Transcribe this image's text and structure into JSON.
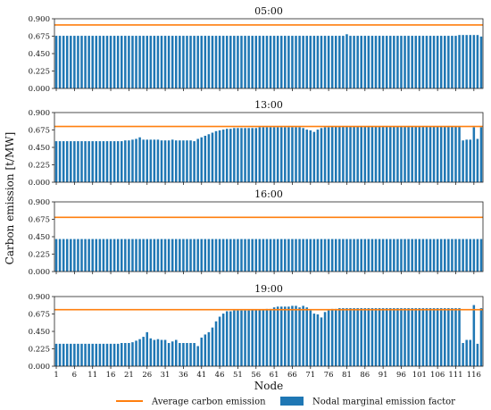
{
  "chart_data": {
    "type": "bar",
    "ylabel": "Carbon emission [t/MW]",
    "xlabel": "Node",
    "x_tick_labels": [
      "1",
      "6",
      "11",
      "16",
      "21",
      "26",
      "31",
      "36",
      "41",
      "46",
      "51",
      "56",
      "61",
      "66",
      "71",
      "76",
      "81",
      "86",
      "91",
      "96",
      "101",
      "106",
      "111",
      "116"
    ],
    "y_tick_labels": [
      "0.000",
      "0.225",
      "0.450",
      "0.675",
      "0.900"
    ],
    "ylim": [
      0,
      0.9
    ],
    "legend": {
      "placement": "bottom-center",
      "line_label": "Average carbon emission",
      "bar_label": "Nodal marginal emission factor"
    },
    "colors": {
      "bar": "#1f77b4",
      "line": "#ff7f0e"
    },
    "panels": [
      {
        "title": "05:00",
        "average": 0.82,
        "values": [
          0.68,
          0.68,
          0.68,
          0.68,
          0.68,
          0.68,
          0.68,
          0.68,
          0.68,
          0.68,
          0.68,
          0.68,
          0.68,
          0.68,
          0.68,
          0.68,
          0.68,
          0.68,
          0.68,
          0.68,
          0.68,
          0.68,
          0.68,
          0.68,
          0.68,
          0.68,
          0.68,
          0.68,
          0.68,
          0.68,
          0.68,
          0.68,
          0.68,
          0.68,
          0.68,
          0.68,
          0.68,
          0.68,
          0.68,
          0.68,
          0.68,
          0.68,
          0.68,
          0.68,
          0.68,
          0.68,
          0.68,
          0.68,
          0.68,
          0.68,
          0.68,
          0.68,
          0.68,
          0.68,
          0.68,
          0.68,
          0.68,
          0.68,
          0.68,
          0.68,
          0.68,
          0.68,
          0.68,
          0.68,
          0.68,
          0.68,
          0.68,
          0.68,
          0.68,
          0.68,
          0.68,
          0.68,
          0.68,
          0.68,
          0.68,
          0.68,
          0.68,
          0.68,
          0.68,
          0.68,
          0.7,
          0.68,
          0.68,
          0.68,
          0.68,
          0.68,
          0.68,
          0.68,
          0.68,
          0.68,
          0.68,
          0.68,
          0.68,
          0.68,
          0.68,
          0.68,
          0.68,
          0.68,
          0.68,
          0.68,
          0.68,
          0.68,
          0.68,
          0.68,
          0.68,
          0.68,
          0.68,
          0.68,
          0.68,
          0.68,
          0.68,
          0.69,
          0.69,
          0.69,
          0.69,
          0.69,
          0.69,
          0.67
        ]
      },
      {
        "title": "13:00",
        "average": 0.72,
        "values": [
          0.53,
          0.53,
          0.53,
          0.53,
          0.53,
          0.53,
          0.53,
          0.53,
          0.53,
          0.53,
          0.53,
          0.53,
          0.53,
          0.53,
          0.53,
          0.53,
          0.53,
          0.53,
          0.53,
          0.54,
          0.54,
          0.55,
          0.56,
          0.58,
          0.55,
          0.55,
          0.55,
          0.55,
          0.55,
          0.54,
          0.54,
          0.54,
          0.55,
          0.54,
          0.54,
          0.54,
          0.54,
          0.54,
          0.53,
          0.56,
          0.58,
          0.6,
          0.62,
          0.64,
          0.66,
          0.67,
          0.68,
          0.69,
          0.69,
          0.7,
          0.7,
          0.7,
          0.7,
          0.7,
          0.7,
          0.7,
          0.71,
          0.71,
          0.71,
          0.71,
          0.71,
          0.71,
          0.71,
          0.71,
          0.71,
          0.71,
          0.71,
          0.71,
          0.7,
          0.68,
          0.67,
          0.65,
          0.68,
          0.7,
          0.71,
          0.71,
          0.72,
          0.72,
          0.72,
          0.72,
          0.72,
          0.72,
          0.72,
          0.72,
          0.72,
          0.72,
          0.72,
          0.72,
          0.72,
          0.72,
          0.72,
          0.72,
          0.72,
          0.72,
          0.72,
          0.72,
          0.72,
          0.72,
          0.72,
          0.72,
          0.72,
          0.72,
          0.72,
          0.72,
          0.72,
          0.72,
          0.72,
          0.72,
          0.72,
          0.72,
          0.72,
          0.72,
          0.54,
          0.55,
          0.55,
          0.71,
          0.56,
          0.71
        ]
      },
      {
        "title": "16:00",
        "average": 0.7,
        "values": [
          0.42,
          0.42,
          0.42,
          0.42,
          0.42,
          0.42,
          0.42,
          0.42,
          0.42,
          0.42,
          0.42,
          0.42,
          0.42,
          0.42,
          0.42,
          0.42,
          0.42,
          0.42,
          0.42,
          0.42,
          0.42,
          0.42,
          0.42,
          0.42,
          0.42,
          0.42,
          0.42,
          0.42,
          0.42,
          0.42,
          0.42,
          0.42,
          0.42,
          0.42,
          0.42,
          0.42,
          0.42,
          0.42,
          0.42,
          0.42,
          0.42,
          0.42,
          0.42,
          0.42,
          0.42,
          0.42,
          0.42,
          0.42,
          0.42,
          0.42,
          0.42,
          0.42,
          0.42,
          0.42,
          0.42,
          0.42,
          0.42,
          0.42,
          0.42,
          0.42,
          0.42,
          0.42,
          0.42,
          0.42,
          0.42,
          0.42,
          0.42,
          0.42,
          0.42,
          0.42,
          0.42,
          0.42,
          0.42,
          0.42,
          0.42,
          0.42,
          0.42,
          0.42,
          0.42,
          0.42,
          0.42,
          0.42,
          0.42,
          0.42,
          0.42,
          0.42,
          0.42,
          0.42,
          0.42,
          0.42,
          0.42,
          0.42,
          0.42,
          0.42,
          0.42,
          0.42,
          0.42,
          0.42,
          0.42,
          0.42,
          0.42,
          0.42,
          0.42,
          0.42,
          0.42,
          0.42,
          0.42,
          0.42,
          0.42,
          0.42,
          0.42,
          0.42,
          0.42,
          0.42,
          0.42,
          0.42,
          0.42,
          0.42
        ]
      },
      {
        "title": "19:00",
        "average": 0.73,
        "values": [
          0.29,
          0.29,
          0.29,
          0.29,
          0.29,
          0.29,
          0.29,
          0.29,
          0.29,
          0.29,
          0.29,
          0.29,
          0.29,
          0.29,
          0.29,
          0.29,
          0.29,
          0.29,
          0.3,
          0.3,
          0.3,
          0.31,
          0.33,
          0.35,
          0.38,
          0.44,
          0.36,
          0.34,
          0.35,
          0.34,
          0.34,
          0.3,
          0.32,
          0.34,
          0.3,
          0.3,
          0.3,
          0.3,
          0.3,
          0.26,
          0.37,
          0.41,
          0.44,
          0.5,
          0.58,
          0.64,
          0.68,
          0.71,
          0.71,
          0.72,
          0.72,
          0.72,
          0.72,
          0.72,
          0.73,
          0.73,
          0.73,
          0.73,
          0.74,
          0.74,
          0.76,
          0.77,
          0.77,
          0.77,
          0.77,
          0.78,
          0.78,
          0.76,
          0.78,
          0.76,
          0.72,
          0.68,
          0.67,
          0.63,
          0.7,
          0.72,
          0.74,
          0.74,
          0.75,
          0.75,
          0.75,
          0.75,
          0.75,
          0.75,
          0.75,
          0.75,
          0.75,
          0.75,
          0.75,
          0.75,
          0.75,
          0.75,
          0.75,
          0.75,
          0.75,
          0.75,
          0.75,
          0.75,
          0.75,
          0.75,
          0.75,
          0.75,
          0.75,
          0.75,
          0.75,
          0.75,
          0.75,
          0.75,
          0.75,
          0.75,
          0.75,
          0.75,
          0.3,
          0.34,
          0.34,
          0.79,
          0.29,
          0.75
        ]
      }
    ]
  }
}
